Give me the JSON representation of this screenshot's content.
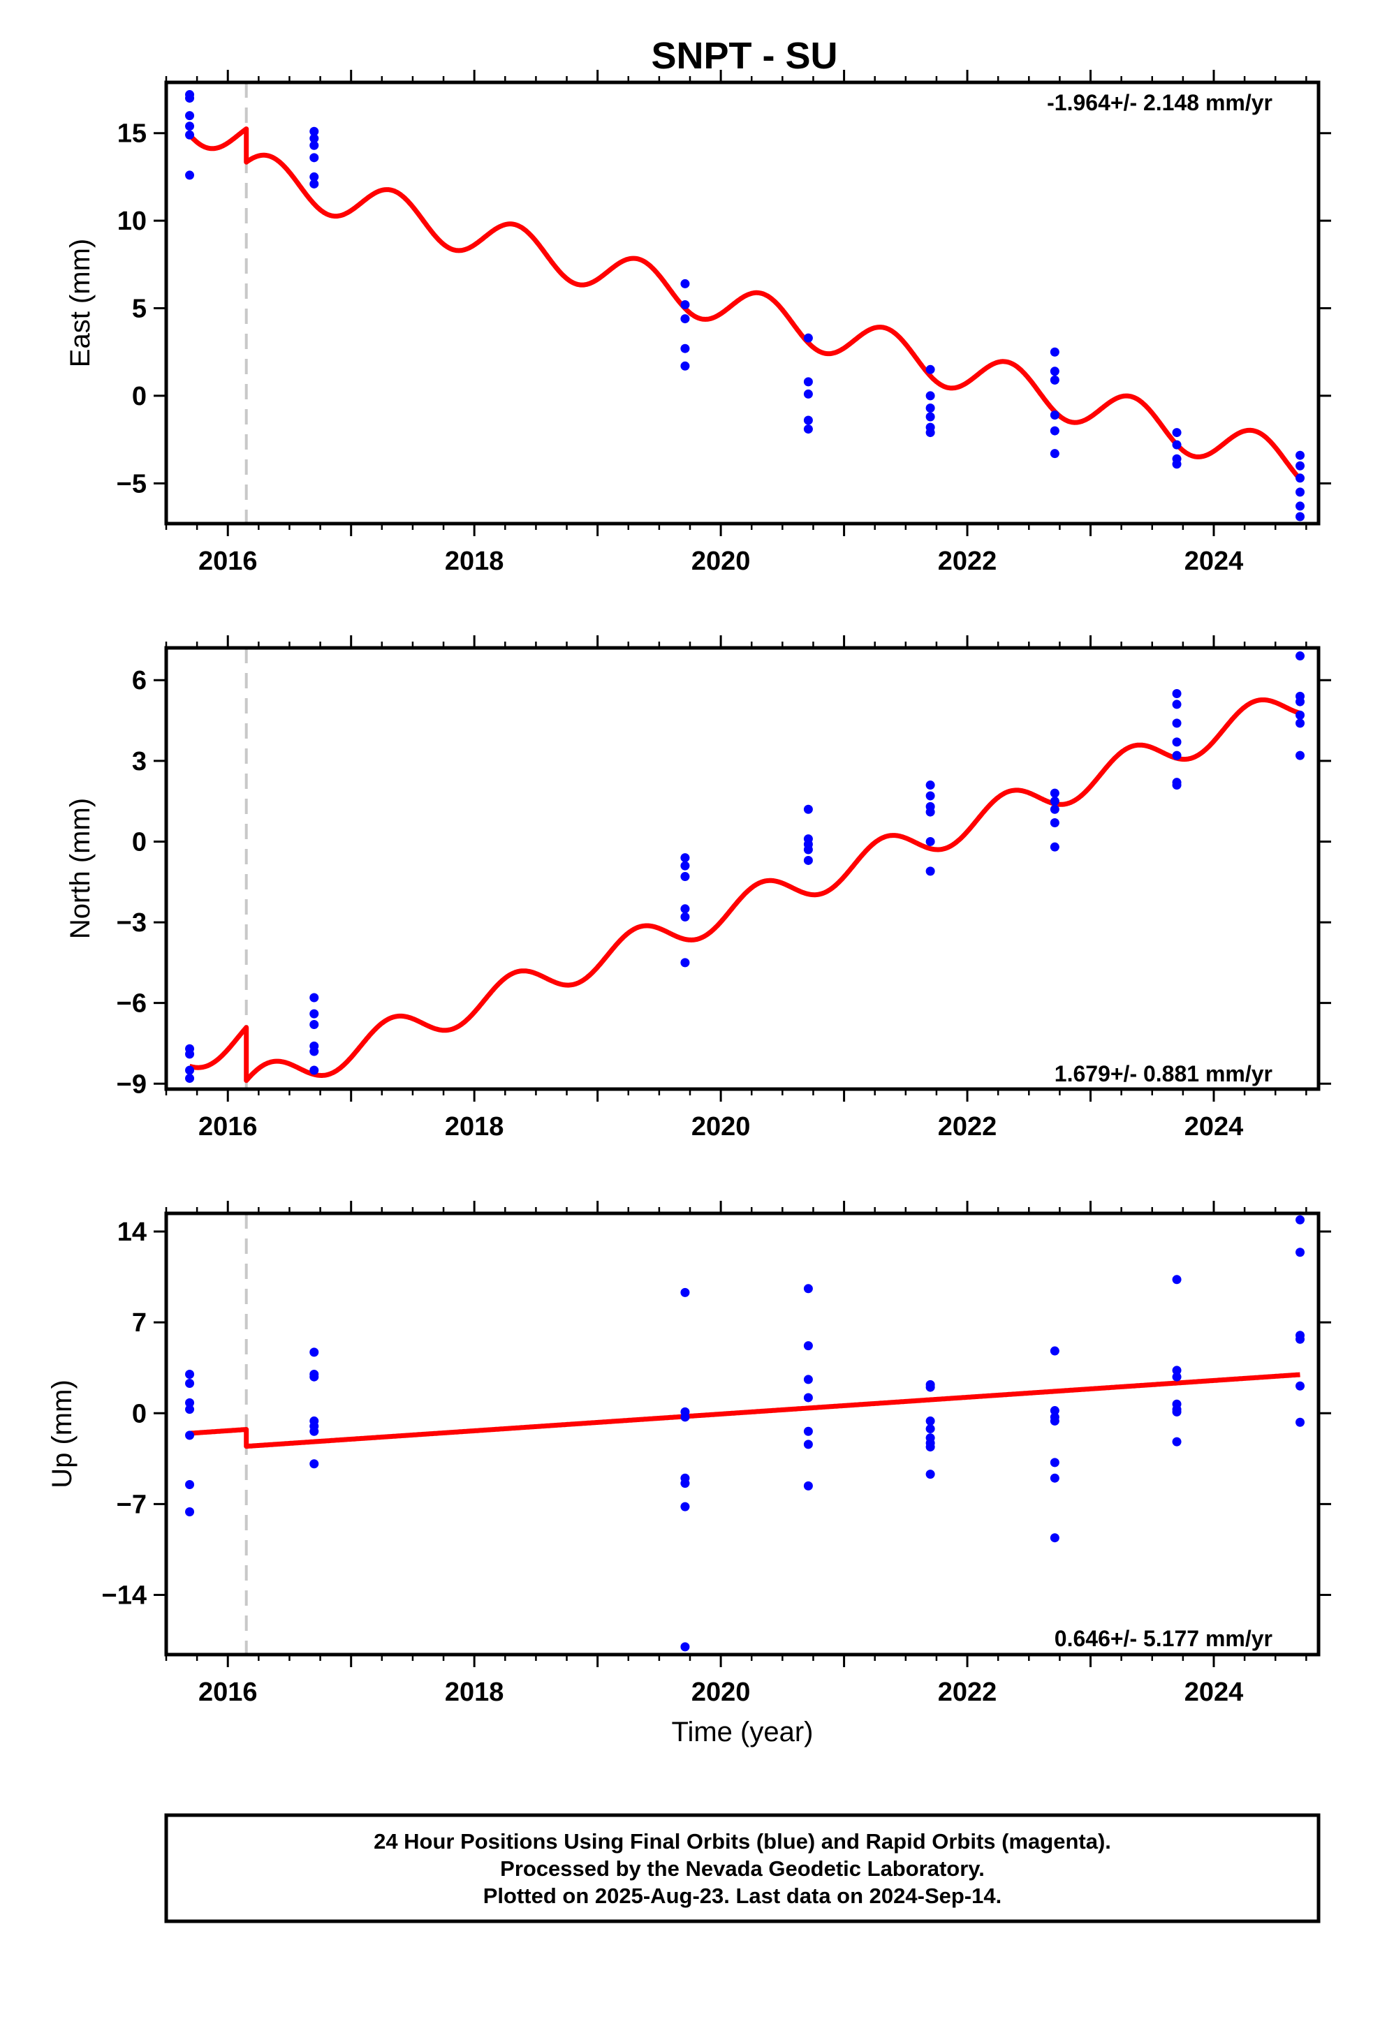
{
  "title": "SNPT - SU",
  "footer": {
    "lines": [
      "24 Hour Positions Using Final Orbits (blue) and Rapid Orbits (magenta).",
      "Processed by the Nevada Geodetic Laboratory.",
      "Plotted on 2025-Aug-23. Last data on 2024-Sep-14."
    ]
  },
  "colors": {
    "final_orbits": "#0000ff",
    "model_fit": "#ff0000",
    "equipment_change": "#c8c8c8",
    "frame": "#000000"
  },
  "chart_data": [
    {
      "type": "scatter",
      "name": "east",
      "ylabel": "East (mm)",
      "xlabel": "",
      "xlim": [
        2015.5,
        2024.85
      ],
      "ylim": [
        -7.3,
        17.9
      ],
      "yticks": [
        15,
        10,
        5,
        0,
        -5
      ],
      "ytick_labels": [
        "15",
        "10",
        "5",
        "0",
        "−5"
      ],
      "xticks": [
        2016,
        2018,
        2020,
        2022,
        2024
      ],
      "xtick_labels": [
        "2016",
        "2018",
        "2020",
        "2022",
        "2024"
      ],
      "rate_label": "-1.964+/- 2.148 mm/yr",
      "equipment_change_x": 2016.15,
      "points": [
        [
          2015.69,
          17.2
        ],
        [
          2015.69,
          17.0
        ],
        [
          2015.69,
          16.0
        ],
        [
          2015.69,
          15.4
        ],
        [
          2015.69,
          14.9
        ],
        [
          2015.69,
          12.6
        ],
        [
          2016.7,
          15.1
        ],
        [
          2016.7,
          14.7
        ],
        [
          2016.7,
          14.3
        ],
        [
          2016.7,
          13.6
        ],
        [
          2016.7,
          12.5
        ],
        [
          2016.7,
          12.1
        ],
        [
          2019.71,
          6.4
        ],
        [
          2019.71,
          5.2
        ],
        [
          2019.71,
          4.4
        ],
        [
          2019.71,
          2.7
        ],
        [
          2019.71,
          1.7
        ],
        [
          2020.71,
          3.3
        ],
        [
          2020.71,
          0.8
        ],
        [
          2020.71,
          0.1
        ],
        [
          2020.71,
          -1.4
        ],
        [
          2020.71,
          -1.9
        ],
        [
          2021.7,
          1.5
        ],
        [
          2021.7,
          0.0
        ],
        [
          2021.7,
          -0.7
        ],
        [
          2021.7,
          -1.2
        ],
        [
          2021.7,
          -1.8
        ],
        [
          2021.7,
          -2.1
        ],
        [
          2022.71,
          2.5
        ],
        [
          2022.71,
          1.4
        ],
        [
          2022.71,
          0.9
        ],
        [
          2022.71,
          -1.1
        ],
        [
          2022.71,
          -2.0
        ],
        [
          2022.71,
          -3.3
        ],
        [
          2023.7,
          -2.1
        ],
        [
          2023.7,
          -2.8
        ],
        [
          2023.7,
          -3.6
        ],
        [
          2023.7,
          -3.9
        ],
        [
          2024.7,
          -3.4
        ],
        [
          2024.7,
          -4.0
        ],
        [
          2024.7,
          -4.7
        ],
        [
          2024.7,
          -5.5
        ],
        [
          2024.7,
          -6.3
        ],
        [
          2024.7,
          -6.9
        ]
      ],
      "model": {
        "segments": [
          [
            2015.69,
            2016.15,
            15.65
          ],
          [
            2016.15,
            2024.7,
            12.85
          ]
        ],
        "rate": -1.964,
        "sin_amp": 1.05,
        "cos_amp": -0.6
      }
    },
    {
      "type": "scatter",
      "name": "north",
      "ylabel": "North (mm)",
      "xlabel": "",
      "xlim": [
        2015.5,
        2024.85
      ],
      "ylim": [
        -9.2,
        7.2
      ],
      "yticks": [
        6,
        3,
        0,
        -3,
        -6,
        -9
      ],
      "ytick_labels": [
        "6",
        "3",
        "0",
        "−3",
        "−6",
        "−9"
      ],
      "xticks": [
        2016,
        2018,
        2020,
        2022,
        2024
      ],
      "xtick_labels": [
        "2016",
        "2018",
        "2020",
        "2022",
        "2024"
      ],
      "rate_label": "1.679+/- 0.881 mm/yr",
      "equipment_change_x": 2016.15,
      "points": [
        [
          2015.69,
          -7.7
        ],
        [
          2015.69,
          -7.9
        ],
        [
          2015.69,
          -8.5
        ],
        [
          2015.69,
          -8.8
        ],
        [
          2016.7,
          -5.8
        ],
        [
          2016.7,
          -6.4
        ],
        [
          2016.7,
          -6.8
        ],
        [
          2016.7,
          -7.6
        ],
        [
          2016.7,
          -7.8
        ],
        [
          2016.7,
          -8.5
        ],
        [
          2019.71,
          -0.6
        ],
        [
          2019.71,
          -0.9
        ],
        [
          2019.71,
          -1.3
        ],
        [
          2019.71,
          -2.5
        ],
        [
          2019.71,
          -2.8
        ],
        [
          2019.71,
          -4.5
        ],
        [
          2020.71,
          1.2
        ],
        [
          2020.71,
          0.1
        ],
        [
          2020.71,
          -0.1
        ],
        [
          2020.71,
          -0.3
        ],
        [
          2020.71,
          -0.7
        ],
        [
          2021.7,
          2.1
        ],
        [
          2021.7,
          1.7
        ],
        [
          2021.7,
          1.3
        ],
        [
          2021.7,
          1.1
        ],
        [
          2021.7,
          0.0
        ],
        [
          2021.7,
          -1.1
        ],
        [
          2022.71,
          1.8
        ],
        [
          2022.71,
          1.5
        ],
        [
          2022.71,
          1.2
        ],
        [
          2022.71,
          0.7
        ],
        [
          2022.71,
          -0.2
        ],
        [
          2023.7,
          5.5
        ],
        [
          2023.7,
          5.1
        ],
        [
          2023.7,
          4.4
        ],
        [
          2023.7,
          3.7
        ],
        [
          2023.7,
          3.2
        ],
        [
          2023.7,
          2.2
        ],
        [
          2023.7,
          2.1
        ],
        [
          2024.7,
          6.9
        ],
        [
          2024.7,
          5.4
        ],
        [
          2024.7,
          5.2
        ],
        [
          2024.7,
          4.7
        ],
        [
          2024.7,
          4.4
        ],
        [
          2024.7,
          3.2
        ]
      ],
      "model": {
        "segments": [
          [
            2015.69,
            2016.15,
            -7.95
          ],
          [
            2016.15,
            2024.7,
            -9.15
          ]
        ],
        "rate": 1.679,
        "sin_amp": 0.55,
        "cos_amp": -0.3
      }
    },
    {
      "type": "scatter",
      "name": "up",
      "ylabel": "Up (mm)",
      "xlabel": "Time (year)",
      "xlim": [
        2015.5,
        2024.85
      ],
      "ylim": [
        -18.6,
        15.4
      ],
      "yticks": [
        14,
        7,
        0,
        -7,
        -14
      ],
      "ytick_labels": [
        "14",
        "7",
        "0",
        "−7",
        "−14"
      ],
      "xticks": [
        2016,
        2018,
        2020,
        2022,
        2024
      ],
      "xtick_labels": [
        "2016",
        "2018",
        "2020",
        "2022",
        "2024"
      ],
      "rate_label": "0.646+/- 5.177 mm/yr",
      "equipment_change_x": 2016.15,
      "points": [
        [
          2015.69,
          3.0
        ],
        [
          2015.69,
          2.3
        ],
        [
          2015.69,
          0.8
        ],
        [
          2015.69,
          0.3
        ],
        [
          2015.69,
          -1.7
        ],
        [
          2015.69,
          -5.5
        ],
        [
          2015.69,
          -7.6
        ],
        [
          2016.7,
          4.7
        ],
        [
          2016.7,
          3.0
        ],
        [
          2016.7,
          2.8
        ],
        [
          2016.7,
          -0.6
        ],
        [
          2016.7,
          -1.0
        ],
        [
          2016.7,
          -1.4
        ],
        [
          2016.7,
          -3.9
        ],
        [
          2019.71,
          9.3
        ],
        [
          2019.71,
          0.1
        ],
        [
          2019.71,
          -0.3
        ],
        [
          2019.71,
          -5.0
        ],
        [
          2019.71,
          -5.4
        ],
        [
          2019.71,
          -7.2
        ],
        [
          2019.71,
          -18.0
        ],
        [
          2020.71,
          9.6
        ],
        [
          2020.71,
          5.2
        ],
        [
          2020.71,
          2.6
        ],
        [
          2020.71,
          1.2
        ],
        [
          2020.71,
          -1.4
        ],
        [
          2020.71,
          -2.4
        ],
        [
          2020.71,
          -5.6
        ],
        [
          2021.7,
          2.2
        ],
        [
          2021.7,
          2.0
        ],
        [
          2021.7,
          -0.6
        ],
        [
          2021.7,
          -1.2
        ],
        [
          2021.7,
          -1.9
        ],
        [
          2021.7,
          -2.3
        ],
        [
          2021.7,
          -2.6
        ],
        [
          2021.7,
          -4.7
        ],
        [
          2022.71,
          4.8
        ],
        [
          2022.71,
          0.2
        ],
        [
          2022.71,
          -0.3
        ],
        [
          2022.71,
          -0.6
        ],
        [
          2022.71,
          -3.8
        ],
        [
          2022.71,
          -5.0
        ],
        [
          2022.71,
          -9.6
        ],
        [
          2023.7,
          10.3
        ],
        [
          2023.7,
          3.3
        ],
        [
          2023.7,
          2.8
        ],
        [
          2023.7,
          0.7
        ],
        [
          2023.7,
          0.3
        ],
        [
          2023.7,
          0.1
        ],
        [
          2023.7,
          -2.2
        ],
        [
          2024.7,
          14.9
        ],
        [
          2024.7,
          12.4
        ],
        [
          2024.7,
          6.0
        ],
        [
          2024.7,
          5.7
        ],
        [
          2024.7,
          2.1
        ],
        [
          2024.7,
          -0.7
        ]
      ],
      "model": {
        "segments": [
          [
            2015.69,
            2016.15,
            -1.55
          ],
          [
            2016.15,
            2024.7,
            -2.55
          ]
        ],
        "rate": 0.646,
        "sin_amp": 0.0,
        "cos_amp": 0.0
      }
    }
  ]
}
